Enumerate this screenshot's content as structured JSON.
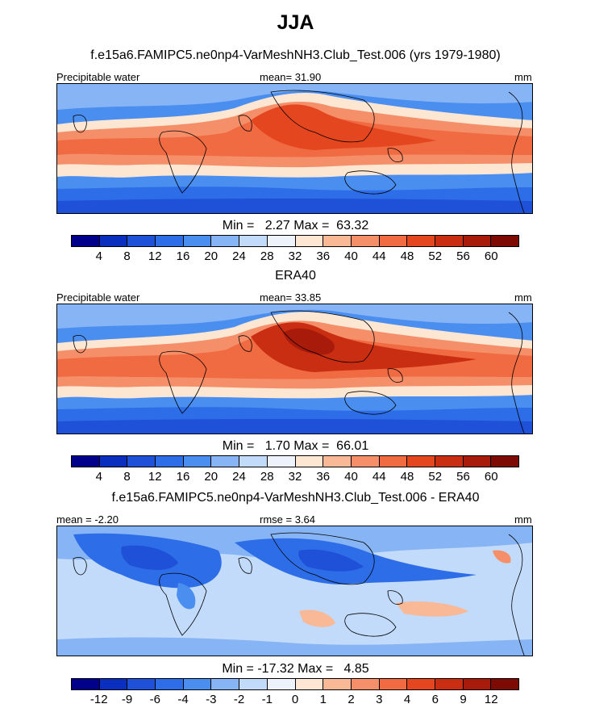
{
  "title": "JJA",
  "panel1": {
    "subtitle": "f.e15a6.FAMIPC5.ne0np4-VarMeshNH3.Club_Test.006 (yrs 1979-1980)",
    "left_label": "Precipitable water",
    "center_label": "mean=  31.90",
    "right_label": "mm",
    "minmax": "Min =   2.27 Max =  63.32"
  },
  "panel2": {
    "subtitle": "ERA40",
    "left_label": "Precipitable water",
    "center_label": "mean=  33.85",
    "right_label": "mm",
    "minmax": "Min =   1.70 Max =  66.01"
  },
  "panel3": {
    "subtitle": "f.e15a6.FAMIPC5.ne0np4-VarMeshNH3.Club_Test.006 - ERA40",
    "left_label": "mean =  -2.20",
    "center_label": "rmse =   3.64",
    "right_label": "mm",
    "minmax": "Min = -17.32 Max =   4.85"
  },
  "colorbar_abs": {
    "colors": [
      "#00008b",
      "#0a2fbe",
      "#1e50d8",
      "#2d6ee8",
      "#4a8ef0",
      "#87b4f5",
      "#c2dbfb",
      "#eef3fb",
      "#fde6d2",
      "#f9b896",
      "#f58f6a",
      "#f06a42",
      "#e4471f",
      "#c92e12",
      "#a81b0a",
      "#7d0a03"
    ],
    "ticks": [
      "4",
      "8",
      "12",
      "16",
      "20",
      "24",
      "28",
      "32",
      "36",
      "40",
      "44",
      "48",
      "52",
      "56",
      "60"
    ]
  },
  "colorbar_diff": {
    "colors": [
      "#00008b",
      "#0a2fbe",
      "#1e50d8",
      "#2d6ee8",
      "#4a8ef0",
      "#87b4f5",
      "#c2dbfb",
      "#eef3fb",
      "#fde6d2",
      "#f9b896",
      "#f58f6a",
      "#f06a42",
      "#e4471f",
      "#c92e12",
      "#a81b0a",
      "#7d0a03"
    ],
    "ticks": [
      "-12",
      "-9",
      "-6",
      "-4",
      "-3",
      "-2",
      "-1",
      "0",
      "1",
      "2",
      "3",
      "4",
      "6",
      "9",
      "12"
    ]
  }
}
